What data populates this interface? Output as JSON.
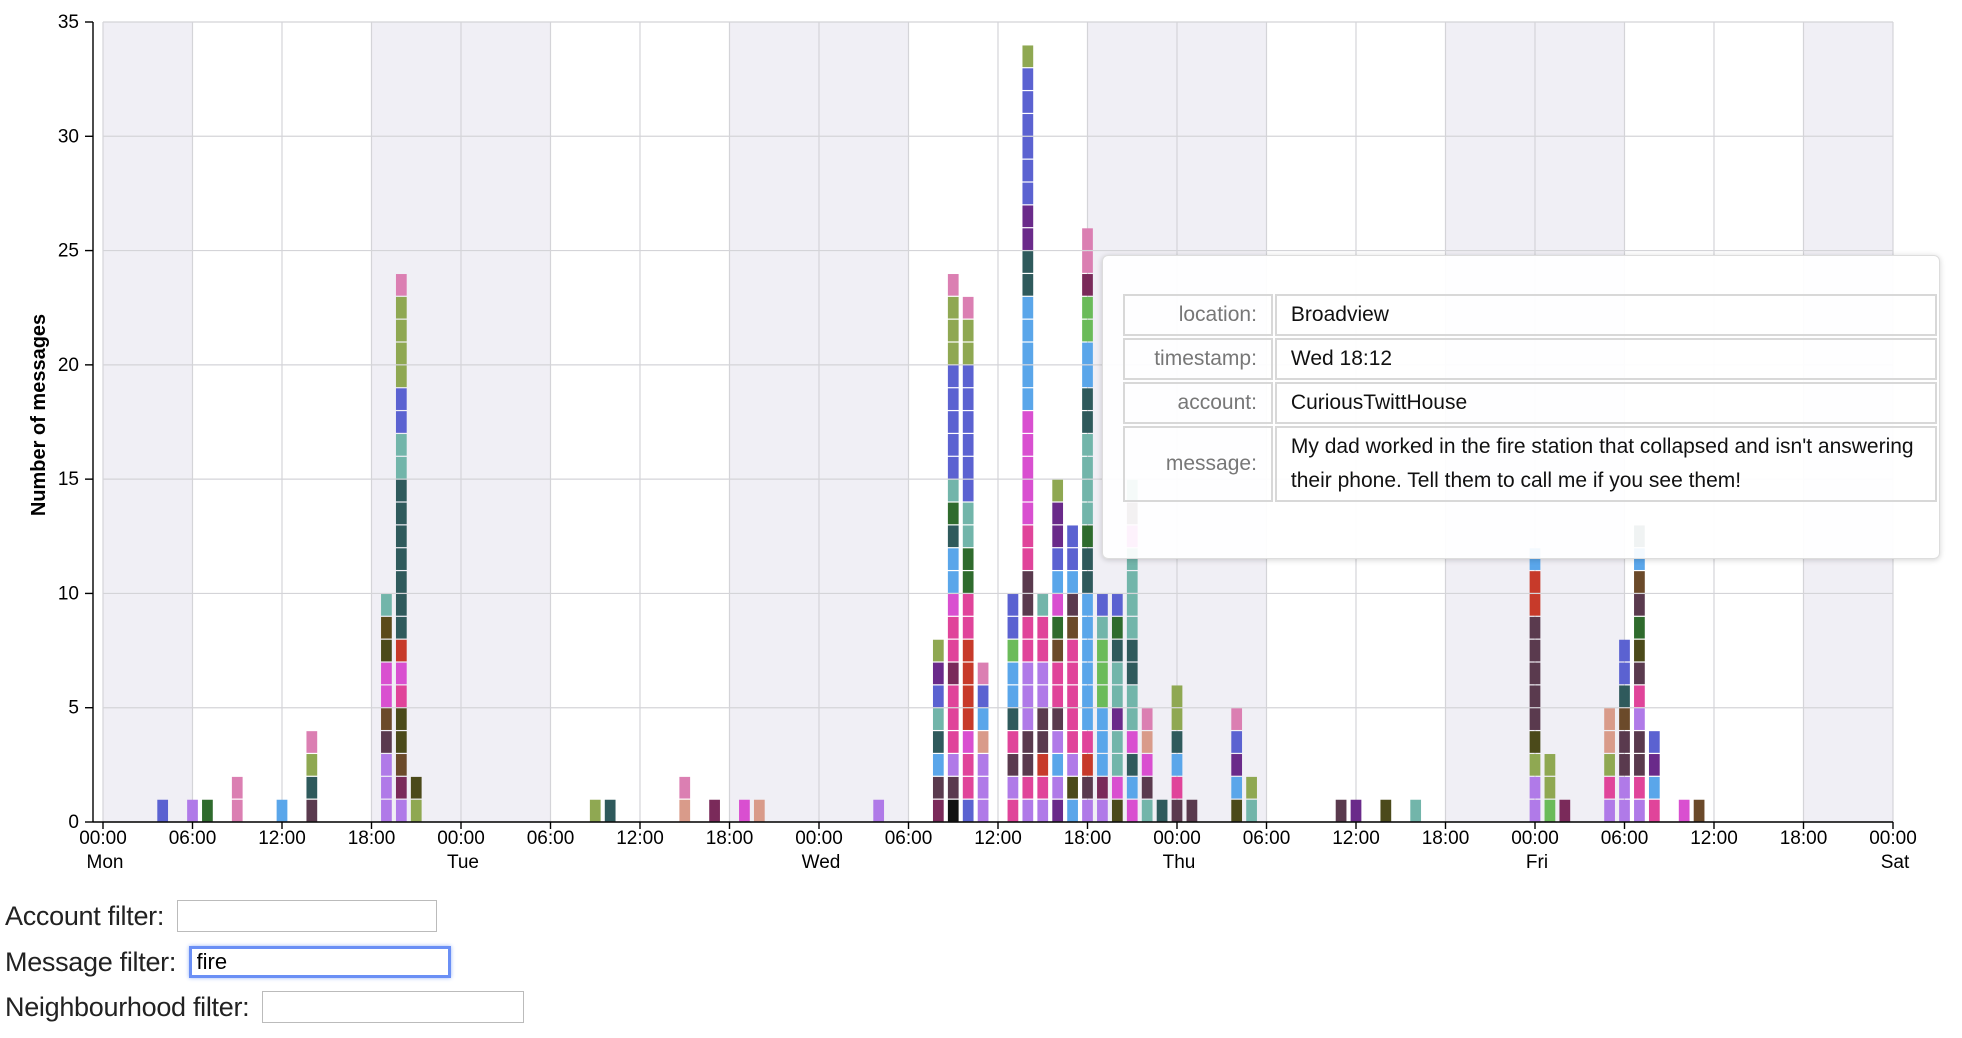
{
  "chart_data": {
    "type": "bar",
    "stacked": true,
    "ylabel": "Number of messages",
    "ylim": [
      0,
      35
    ],
    "yticks": [
      0,
      5,
      10,
      15,
      20,
      25,
      30,
      35
    ],
    "x_unit": "hours since Mon 00:00",
    "xlim": [
      0,
      120
    ],
    "x_ticks": [
      {
        "x": 0,
        "label": "00:00",
        "day": "Mon"
      },
      {
        "x": 6,
        "label": "06:00"
      },
      {
        "x": 12,
        "label": "12:00"
      },
      {
        "x": 18,
        "label": "18:00"
      },
      {
        "x": 24,
        "label": "00:00",
        "day": "Tue"
      },
      {
        "x": 30,
        "label": "06:00"
      },
      {
        "x": 36,
        "label": "12:00"
      },
      {
        "x": 42,
        "label": "18:00"
      },
      {
        "x": 48,
        "label": "00:00",
        "day": "Wed"
      },
      {
        "x": 54,
        "label": "06:00"
      },
      {
        "x": 60,
        "label": "12:00"
      },
      {
        "x": 66,
        "label": "18:00"
      },
      {
        "x": 72,
        "label": "00:00",
        "day": "Thu"
      },
      {
        "x": 78,
        "label": "06:00"
      },
      {
        "x": 84,
        "label": "12:00"
      },
      {
        "x": 90,
        "label": "18:00"
      },
      {
        "x": 96,
        "label": "00:00",
        "day": "Fri"
      },
      {
        "x": 102,
        "label": "06:00"
      },
      {
        "x": 108,
        "label": "12:00"
      },
      {
        "x": 114,
        "label": "18:00"
      },
      {
        "x": 120,
        "label": "00:00",
        "day": "Sat"
      }
    ],
    "night_bands": [
      [
        0,
        6
      ],
      [
        18,
        30
      ],
      [
        42,
        54
      ],
      [
        66,
        78
      ],
      [
        90,
        102
      ],
      [
        114,
        120
      ]
    ],
    "grid": true,
    "bins": [
      {
        "x": 4,
        "stack": [
          "#5b62d1"
        ]
      },
      {
        "x": 6,
        "stack": [
          "#b07ae8"
        ]
      },
      {
        "x": 7,
        "stack": [
          "#2f6b2d"
        ]
      },
      {
        "x": 9,
        "stack": [
          "#db7fb2",
          "#db7fb2"
        ]
      },
      {
        "x": 12,
        "stack": [
          "#5aa6ea"
        ]
      },
      {
        "x": 14,
        "stack": [
          "#5a3a4e",
          "#2f5a5c",
          "#8fa852",
          "#db7fb2"
        ]
      },
      {
        "x": 19,
        "stack": [
          "#b07ae8",
          "#b07ae8",
          "#b07ae8",
          "#5a3a4e",
          "#6b4a2a",
          "#d94fd0",
          "#d94fd0",
          "#4b4a1a",
          "#5b4a1a",
          "#72b5aa"
        ]
      },
      {
        "x": 20,
        "stack": [
          "#b07ae8",
          "#7a2a5a",
          "#6b4a2a",
          "#4b4a1a",
          "#4b4a1a",
          "#e0449a",
          "#d94fd0",
          "#c73a2a",
          "#2f5a5c",
          "#2f5a5c",
          "#2f5a5c",
          "#2f5a5c",
          "#2f5a5c",
          "#2f5a5c",
          "#2f5a5c",
          "#72b5aa",
          "#72b5aa",
          "#5b62d1",
          "#5b62d1",
          "#8fa852",
          "#8fa852",
          "#8fa852",
          "#8fa852",
          "#db7fb2"
        ]
      },
      {
        "x": 21,
        "stack": [
          "#8fa852",
          "#4b4a1a"
        ]
      },
      {
        "x": 33,
        "stack": [
          "#8fa852"
        ]
      },
      {
        "x": 34,
        "stack": [
          "#2f5a5c"
        ]
      },
      {
        "x": 39,
        "stack": [
          "#d99b8a",
          "#db7fb2"
        ]
      },
      {
        "x": 41,
        "stack": [
          "#7a2a5a"
        ]
      },
      {
        "x": 43,
        "stack": [
          "#d94fd0"
        ]
      },
      {
        "x": 44,
        "stack": [
          "#d99b8a"
        ]
      },
      {
        "x": 52,
        "stack": [
          "#b07ae8"
        ]
      },
      {
        "x": 56,
        "stack": [
          "#7a2a5a",
          "#5a3a4e",
          "#5aa6ea",
          "#2f5a5c",
          "#72b5aa",
          "#5b62d1",
          "#6a2a8a",
          "#8fa852"
        ]
      },
      {
        "x": 57,
        "stack": [
          "#111111",
          "#5a3a4e",
          "#b07ae8",
          "#e0449a",
          "#e0449a",
          "#e0449a",
          "#7a2a5a",
          "#e0449a",
          "#e0449a",
          "#d94fd0",
          "#5aa6ea",
          "#5aa6ea",
          "#2f5a5c",
          "#2f6b2d",
          "#72b5aa",
          "#5b62d1",
          "#5b62d1",
          "#5b62d1",
          "#5b62d1",
          "#5b62d1",
          "#8fa852",
          "#8fa852",
          "#8fa852",
          "#db7fb2"
        ]
      },
      {
        "x": 58,
        "stack": [
          "#5b62d1",
          "#e0449a",
          "#e0449a",
          "#d94fd0",
          "#c73a2a",
          "#c73a2a",
          "#c73a2a",
          "#c73a2a",
          "#e0449a",
          "#e0449a",
          "#2f6b2d",
          "#2f6b2d",
          "#72b5aa",
          "#72b5aa",
          "#5b62d1",
          "#5b62d1",
          "#5b62d1",
          "#5b62d1",
          "#5b62d1",
          "#5b62d1",
          "#8fa852",
          "#8fa852",
          "#db7fb2"
        ]
      },
      {
        "x": 59,
        "stack": [
          "#b07ae8",
          "#b07ae8",
          "#b07ae8",
          "#d99b8a",
          "#5aa6ea",
          "#5b62d1",
          "#db7fb2"
        ]
      },
      {
        "x": 61,
        "stack": [
          "#e0449a",
          "#b07ae8",
          "#5a3a4e",
          "#e0449a",
          "#2f5a5c",
          "#5aa6ea",
          "#5aa6ea",
          "#6bbb5a",
          "#5b62d1",
          "#5b62d1"
        ]
      },
      {
        "x": 62,
        "stack": [
          "#b07ae8",
          "#e0449a",
          "#5a3a4e",
          "#5a3a4e",
          "#b07ae8",
          "#b07ae8",
          "#b07ae8",
          "#e0449a",
          "#e0449a",
          "#5a3a4e",
          "#5a3a4e",
          "#e0449a",
          "#e0449a",
          "#d94fd0",
          "#d94fd0",
          "#d94fd0",
          "#d94fd0",
          "#d94fd0",
          "#5aa6ea",
          "#5aa6ea",
          "#5aa6ea",
          "#5aa6ea",
          "#5aa6ea",
          "#2f5a5c",
          "#2f5a5c",
          "#6a2a8a",
          "#6a2a8a",
          "#5b62d1",
          "#5b62d1",
          "#5b62d1",
          "#5b62d1",
          "#5b62d1",
          "#5b62d1",
          "#8fa852"
        ]
      },
      {
        "x": 63,
        "stack": [
          "#b07ae8",
          "#e0449a",
          "#c73a2a",
          "#5a3a4e",
          "#5a3a4e",
          "#b07ae8",
          "#b07ae8",
          "#e0449a",
          "#e0449a",
          "#72b5aa"
        ]
      },
      {
        "x": 64,
        "stack": [
          "#6a2a8a",
          "#b07ae8",
          "#5aa6ea",
          "#b07ae8",
          "#5a3a4e",
          "#e0449a",
          "#e0449a",
          "#6b4a2a",
          "#2f6b2d",
          "#d94fd0",
          "#5aa6ea",
          "#5b62d1",
          "#6a2a8a",
          "#6a2a8a",
          "#8fa852"
        ]
      },
      {
        "x": 65,
        "stack": [
          "#5aa6ea",
          "#4b4a1a",
          "#b07ae8",
          "#e0449a",
          "#e0449a",
          "#e0449a",
          "#e0449a",
          "#e0449a",
          "#6b4a2a",
          "#5a3a4e",
          "#5aa6ea",
          "#5b62d1",
          "#5b62d1"
        ]
      },
      {
        "x": 66,
        "stack": [
          "#b07ae8",
          "#5a3a4e",
          "#c73a2a",
          "#e0449a",
          "#5aa6ea",
          "#5aa6ea",
          "#5aa6ea",
          "#5aa6ea",
          "#5aa6ea",
          "#5aa6ea",
          "#2f5a5c",
          "#2f5a5c",
          "#2f6b2d",
          "#72b5aa",
          "#72b5aa",
          "#72b5aa",
          "#72b5aa",
          "#2f5a5c",
          "#2f5a5c",
          "#5aa6ea",
          "#5aa6ea",
          "#6bbb5a",
          "#6bbb5a",
          "#7a2a5a",
          "#db7fb2",
          "#db7fb2"
        ]
      },
      {
        "x": 67,
        "stack": [
          "#b07ae8",
          "#7a2a5a",
          "#5aa6ea",
          "#5aa6ea",
          "#5aa6ea",
          "#6bbb5a",
          "#6bbb5a",
          "#6bbb5a",
          "#72b5aa",
          "#5b62d1"
        ]
      },
      {
        "x": 68,
        "stack": [
          "#4b4a1a",
          "#d94fd0",
          "#72b5aa",
          "#72b5aa",
          "#6a2a8a",
          "#72b5aa",
          "#72b5aa",
          "#2f5a5c",
          "#2f6b2d",
          "#5b62d1"
        ]
      },
      {
        "x": 69,
        "stack": [
          "#d94fd0",
          "#5aa6ea",
          "#2f5a5c",
          "#d94fd0",
          "#72b5aa",
          "#72b5aa",
          "#2f5a5c",
          "#2f5a5c",
          "#72b5aa",
          "#72b5aa",
          "#72b5aa",
          "#72b5aa",
          "#d94fd0",
          "#5a3a4e",
          "#72b5aa"
        ]
      },
      {
        "x": 70,
        "stack": [
          "#72b5aa",
          "#5a3a4e",
          "#d94fd0",
          "#d99b8a",
          "#db7fb2"
        ]
      },
      {
        "x": 71,
        "stack": [
          "#2f5a5c"
        ]
      },
      {
        "x": 72,
        "stack": [
          "#5a3a4e",
          "#e0449a",
          "#5aa6ea",
          "#2f5a5c",
          "#8fa852",
          "#8fa852"
        ]
      },
      {
        "x": 73,
        "stack": [
          "#5a3a4e"
        ]
      },
      {
        "x": 76,
        "stack": [
          "#4b4a1a",
          "#5aa6ea",
          "#6a2a8a",
          "#5b62d1",
          "#db7fb2"
        ]
      },
      {
        "x": 77,
        "stack": [
          "#72b5aa",
          "#8fa852"
        ]
      },
      {
        "x": 83,
        "stack": [
          "#5a3a4e"
        ]
      },
      {
        "x": 84,
        "stack": [
          "#6a2a8a"
        ]
      },
      {
        "x": 86,
        "stack": [
          "#4b4a1a"
        ]
      },
      {
        "x": 88,
        "stack": [
          "#72b5aa"
        ]
      },
      {
        "x": 96,
        "stack": [
          "#b07ae8",
          "#b07ae8",
          "#8fa852",
          "#4b4a1a",
          "#5a3a4e",
          "#5a3a4e",
          "#5a3a4e",
          "#5a3a4e",
          "#5a3a4e",
          "#c73a2a",
          "#c73a2a",
          "#5aa6ea"
        ]
      },
      {
        "x": 97,
        "stack": [
          "#6bbb5a",
          "#8fa852",
          "#8fa852"
        ]
      },
      {
        "x": 98,
        "stack": [
          "#7a2a5a"
        ]
      },
      {
        "x": 101,
        "stack": [
          "#b07ae8",
          "#e0449a",
          "#8fa852",
          "#d99b8a",
          "#d99b8a"
        ]
      },
      {
        "x": 102,
        "stack": [
          "#b07ae8",
          "#b07ae8",
          "#5a3a4e",
          "#5a3a4e",
          "#6b4a2a",
          "#2f5a5c",
          "#5b62d1",
          "#5b62d1"
        ]
      },
      {
        "x": 103,
        "stack": [
          "#b07ae8",
          "#e0449a",
          "#5a3a4e",
          "#5a3a4e",
          "#b07ae8",
          "#e0449a",
          "#5a3a4e",
          "#4b4a1a",
          "#2f6b2d",
          "#5a3a4e",
          "#6b4a2a",
          "#5aa6ea",
          "#2f5a5c"
        ]
      },
      {
        "x": 104,
        "stack": [
          "#e0449a",
          "#5aa6ea",
          "#6a2a8a",
          "#5b62d1"
        ]
      },
      {
        "x": 106,
        "stack": [
          "#d94fd0"
        ]
      },
      {
        "x": 107,
        "stack": [
          "#6b4a2a"
        ]
      }
    ]
  },
  "tooltip": {
    "rows": [
      {
        "key": "location:",
        "value": "Broadview"
      },
      {
        "key": "timestamp:",
        "value": "Wed 18:12"
      },
      {
        "key": "account:",
        "value": "CuriousTwittHouse"
      },
      {
        "key": "message:",
        "value": "My dad worked in the fire station that collapsed and isn't answering their phone. Tell them to call me if you see them!"
      }
    ]
  },
  "filters": {
    "account": {
      "label": "Account filter:",
      "value": ""
    },
    "message": {
      "label": "Message filter:",
      "value": "fire"
    },
    "neighbourhood": {
      "label": "Neighbourhood filter:",
      "value": ""
    }
  }
}
